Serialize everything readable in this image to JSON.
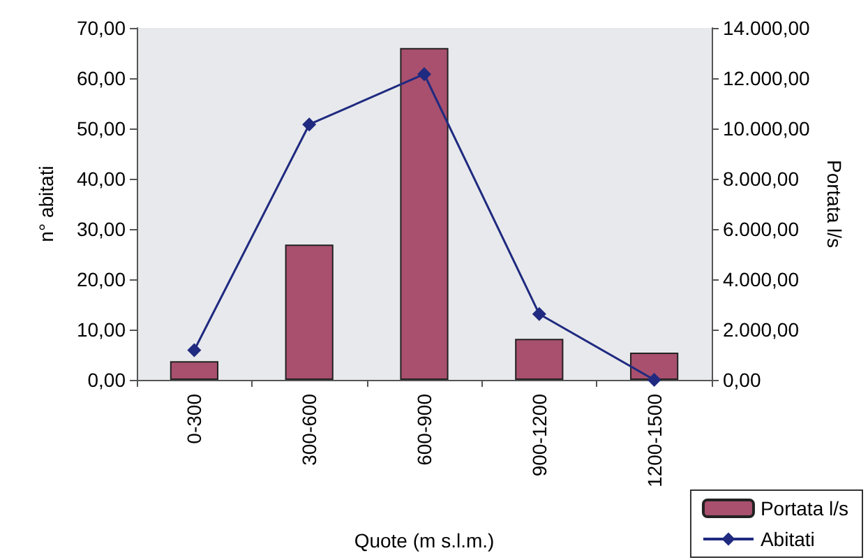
{
  "chart_data": {
    "type": "bar",
    "xlabel": "Quote (m s.l.m.)",
    "ylabel": "n° abitati",
    "y2label": "Portata l/s",
    "categories": [
      "0-300",
      "300-600",
      "600-900",
      "900-1200",
      "1200-1500"
    ],
    "series": [
      {
        "name": "Portata l/s",
        "axis": "y2",
        "color": "#a8506e",
        "values": [
          740,
          5380,
          13200,
          1630,
          1080
        ]
      },
      {
        "name": "Abitati",
        "type": "line",
        "color": "#1f2a80",
        "marker": "diamond",
        "values": [
          5.9,
          50.8,
          60.8,
          13.1,
          0
        ]
      }
    ],
    "ylim": [
      0,
      70
    ],
    "yticks": [
      {
        "value": 0,
        "label": "0,00"
      },
      {
        "value": 10,
        "label": "10,00"
      },
      {
        "value": 20,
        "label": "20,00"
      },
      {
        "value": 30,
        "label": "30,00"
      },
      {
        "value": 40,
        "label": "40,00"
      },
      {
        "value": 50,
        "label": "50,00"
      },
      {
        "value": 60,
        "label": "60,00"
      },
      {
        "value": 70,
        "label": "70,00"
      }
    ],
    "y2lim": [
      0,
      14000
    ],
    "y2ticks": [
      {
        "value": 0,
        "label": "0,00"
      },
      {
        "value": 2000,
        "label": "2.000,00"
      },
      {
        "value": 4000,
        "label": "4.000,00"
      },
      {
        "value": 6000,
        "label": "6.000,00"
      },
      {
        "value": 8000,
        "label": "8.000,00"
      },
      {
        "value": 10000,
        "label": "10.000,00"
      },
      {
        "value": 12000,
        "label": "12.000,00"
      },
      {
        "value": 14000,
        "label": "14.000,00"
      }
    ],
    "grid": false,
    "legend": "bottom right"
  }
}
